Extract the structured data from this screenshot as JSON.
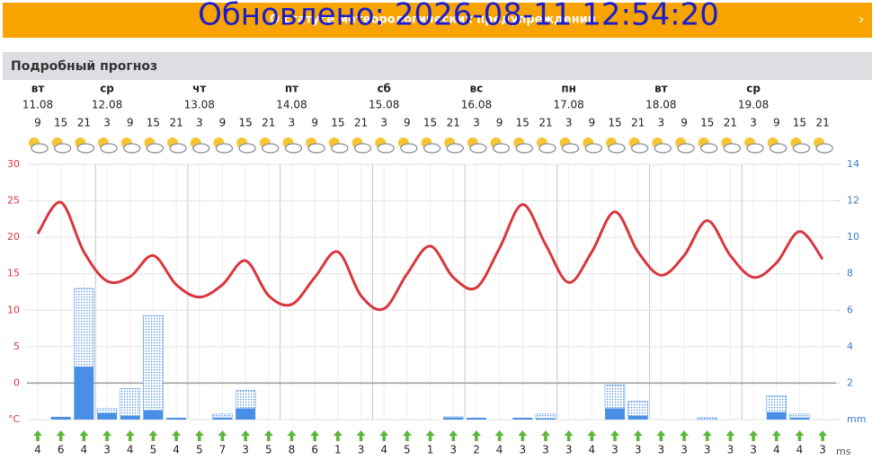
{
  "banner": {
    "text": "О статусе метеорологических предупреждений",
    "overlay": "Обновлено: 2026-08-11 12:54:20"
  },
  "section_title": "Подробный прогноз",
  "days": [
    {
      "name": "вт",
      "date": "11.08"
    },
    {
      "name": "ср",
      "date": "12.08"
    },
    {
      "name": "чт",
      "date": "13.08"
    },
    {
      "name": "пт",
      "date": "14.08"
    },
    {
      "name": "сб",
      "date": "15.08"
    },
    {
      "name": "вс",
      "date": "16.08"
    },
    {
      "name": "пн",
      "date": "17.08"
    },
    {
      "name": "вт",
      "date": "18.08"
    },
    {
      "name": "ср",
      "date": "19.08"
    }
  ],
  "hours": [
    9,
    15,
    21,
    3,
    9,
    15,
    21,
    3,
    9,
    15,
    21,
    3,
    9,
    15,
    21,
    3,
    9,
    15,
    21,
    3,
    9,
    15,
    21,
    3,
    9,
    15,
    21,
    3,
    9,
    15,
    21,
    3,
    9,
    15,
    21
  ],
  "chart_data": {
    "type": "line",
    "grid": true,
    "ylim": [
      -5,
      30
    ],
    "yticks": [
      {
        "value": -5,
        "label": "°C"
      },
      0,
      5,
      10,
      15,
      20,
      25,
      30
    ],
    "y2lim": [
      0,
      14
    ],
    "y2ticks": [
      {
        "value": 0,
        "label": "mm"
      },
      2,
      4,
      6,
      8,
      10,
      12,
      14
    ],
    "series": [
      {
        "type": "line",
        "color": "#d9363e",
        "values": [
          20.5,
          24.8,
          18,
          14,
          14.6,
          17.5,
          13.5,
          11.8,
          13.5,
          16.8,
          12,
          10.8,
          14.5,
          18,
          12,
          10.2,
          15,
          18.8,
          14.5,
          13.1,
          18.5,
          24.5,
          19,
          13.8,
          18,
          23.5,
          18,
          14.8,
          17.5,
          22.3,
          17.5,
          14.5,
          16.5,
          20.8,
          17
        ]
      },
      {
        "type": "bar",
        "axis": "y2",
        "color": "#4a8fe6",
        "values": [
          0,
          0.15,
          2.9,
          0.35,
          0.2,
          0.5,
          0.1,
          0,
          0.1,
          0.6,
          0,
          0,
          0,
          0,
          0,
          0,
          0,
          0,
          0.1,
          0.1,
          0,
          0.1,
          0.05,
          0,
          0,
          0.6,
          0.2,
          0,
          0,
          0,
          0,
          0,
          0.4,
          0.1,
          0
        ]
      },
      {
        "type": "bar",
        "axis": "y2",
        "pattern": "dotted",
        "color": "#4a8fe6",
        "values": [
          0,
          0,
          4.3,
          0.25,
          1.5,
          5.2,
          0,
          0,
          0.2,
          1.0,
          0,
          0,
          0,
          0,
          0,
          0,
          0,
          0,
          0.05,
          0,
          0,
          0,
          0.25,
          0,
          0,
          1.3,
          0.8,
          0,
          0,
          0.1,
          0,
          0,
          0.9,
          0.2,
          0
        ]
      }
    ]
  },
  "wind": {
    "values": [
      4,
      6,
      4,
      3,
      4,
      5,
      4,
      5,
      7,
      3,
      5,
      8,
      6,
      1,
      3,
      4,
      5,
      1,
      3,
      2,
      4,
      3,
      3,
      3,
      4,
      3,
      3,
      3,
      3,
      3,
      3,
      3,
      4,
      4,
      3
    ],
    "unit": "ms"
  }
}
